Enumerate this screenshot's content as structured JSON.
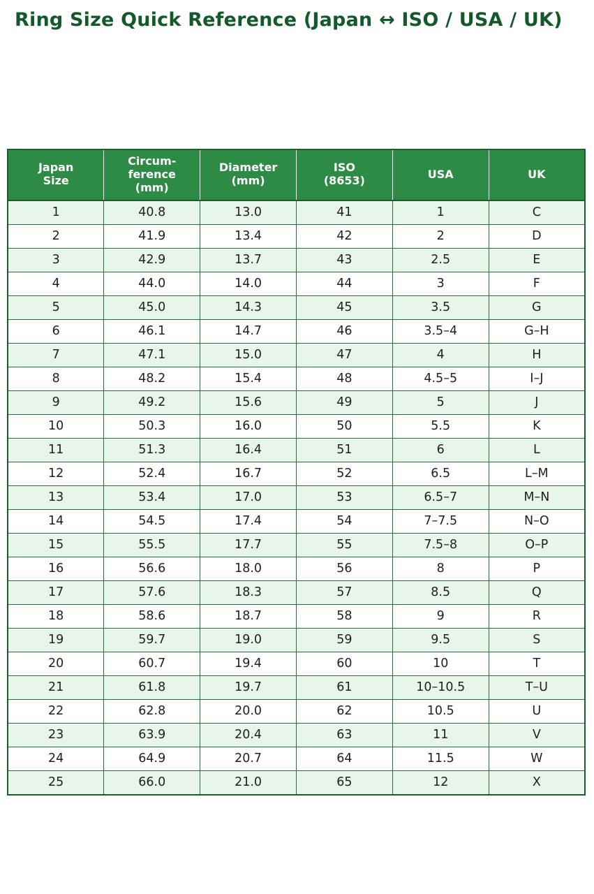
{
  "page": {
    "title": "Ring Size Quick Reference (Japan ↔ ISO / USA / UK)"
  },
  "colors": {
    "title_text": "#14592b",
    "header_bg": "#2e8b46",
    "header_text": "#ffffff",
    "row_alt_bg": "#e8f5ea",
    "border": "#1d5c30"
  },
  "table": {
    "headers": [
      "Japan\nSize",
      "Circum-\nference\n(mm)",
      "Diameter\n(mm)",
      "ISO\n(8653)",
      "USA",
      "UK"
    ],
    "rows": [
      [
        "1",
        "40.8",
        "13.0",
        "41",
        "1",
        "C"
      ],
      [
        "2",
        "41.9",
        "13.4",
        "42",
        "2",
        "D"
      ],
      [
        "3",
        "42.9",
        "13.7",
        "43",
        "2.5",
        "E"
      ],
      [
        "4",
        "44.0",
        "14.0",
        "44",
        "3",
        "F"
      ],
      [
        "5",
        "45.0",
        "14.3",
        "45",
        "3.5",
        "G"
      ],
      [
        "6",
        "46.1",
        "14.7",
        "46",
        "3.5–4",
        "G–H"
      ],
      [
        "7",
        "47.1",
        "15.0",
        "47",
        "4",
        "H"
      ],
      [
        "8",
        "48.2",
        "15.4",
        "48",
        "4.5–5",
        "I–J"
      ],
      [
        "9",
        "49.2",
        "15.6",
        "49",
        "5",
        "J"
      ],
      [
        "10",
        "50.3",
        "16.0",
        "50",
        "5.5",
        "K"
      ],
      [
        "11",
        "51.3",
        "16.4",
        "51",
        "6",
        "L"
      ],
      [
        "12",
        "52.4",
        "16.7",
        "52",
        "6.5",
        "L–M"
      ],
      [
        "13",
        "53.4",
        "17.0",
        "53",
        "6.5–7",
        "M–N"
      ],
      [
        "14",
        "54.5",
        "17.4",
        "54",
        "7–7.5",
        "N–O"
      ],
      [
        "15",
        "55.5",
        "17.7",
        "55",
        "7.5–8",
        "O–P"
      ],
      [
        "16",
        "56.6",
        "18.0",
        "56",
        "8",
        "P"
      ],
      [
        "17",
        "57.6",
        "18.3",
        "57",
        "8.5",
        "Q"
      ],
      [
        "18",
        "58.6",
        "18.7",
        "58",
        "9",
        "R"
      ],
      [
        "19",
        "59.7",
        "19.0",
        "59",
        "9.5",
        "S"
      ],
      [
        "20",
        "60.7",
        "19.4",
        "60",
        "10",
        "T"
      ],
      [
        "21",
        "61.8",
        "19.7",
        "61",
        "10–10.5",
        "T–U"
      ],
      [
        "22",
        "62.8",
        "20.0",
        "62",
        "10.5",
        "U"
      ],
      [
        "23",
        "63.9",
        "20.4",
        "63",
        "11",
        "V"
      ],
      [
        "24",
        "64.9",
        "20.7",
        "64",
        "11.5",
        "W"
      ],
      [
        "25",
        "66.0",
        "21.0",
        "65",
        "12",
        "X"
      ]
    ]
  }
}
